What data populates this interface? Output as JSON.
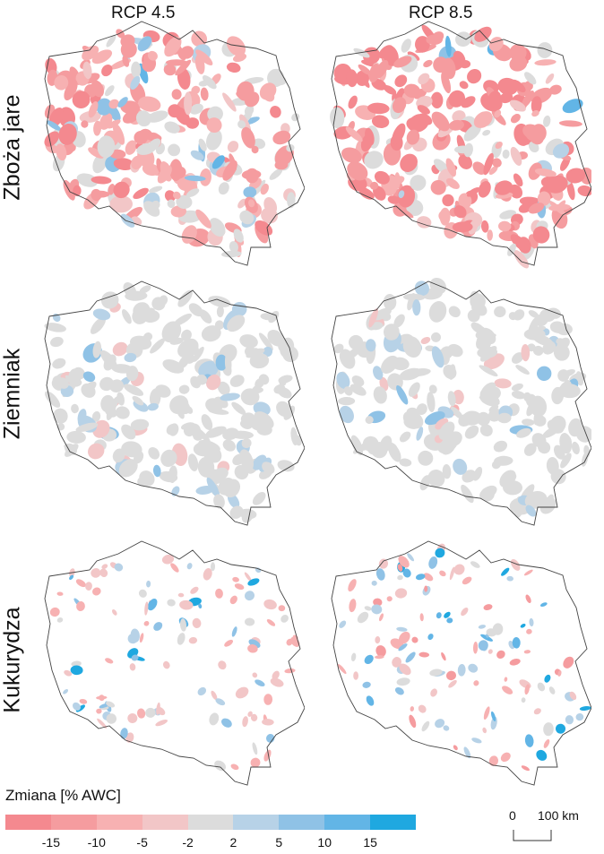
{
  "columns": [
    "RCP 4.5",
    "RCP 8.5"
  ],
  "rows": [
    "Zboża jare",
    "Ziemniak",
    "Kukurydza"
  ],
  "legend": {
    "title": "Zmiana [% AWC]",
    "colors": [
      "#f4898f",
      "#f59c9f",
      "#f7b1b2",
      "#f2c6c7",
      "#dcdcdc",
      "#b7d2e7",
      "#8fc2e6",
      "#62b5e6",
      "#1fa8e0"
    ],
    "ticks": [
      "-15",
      "-10",
      "-5",
      "-2",
      "2",
      "5",
      "10",
      "15"
    ]
  },
  "scale_bar": {
    "zero": "0",
    "label": "100 km"
  },
  "maps": [
    {
      "row": "Zboża jare",
      "column": "RCP 4.5",
      "dominant_class": "-10 to -5",
      "coverage": 0.85
    },
    {
      "row": "Zboża jare",
      "column": "RCP 8.5",
      "dominant_class": "-15 to -10",
      "coverage": 0.88
    },
    {
      "row": "Ziemniak",
      "column": "RCP 4.5",
      "dominant_class": "-2 to 2",
      "coverage": 0.8
    },
    {
      "row": "Ziemniak",
      "column": "RCP 8.5",
      "dominant_class": "-2 to 2",
      "coverage": 0.78
    },
    {
      "row": "Kukurydza",
      "column": "RCP 4.5",
      "dominant_class": "-5 to -2",
      "coverage": 0.35
    },
    {
      "row": "Kukurydza",
      "column": "RCP 8.5",
      "dominant_class": "-5 to -2",
      "coverage": 0.38
    }
  ]
}
